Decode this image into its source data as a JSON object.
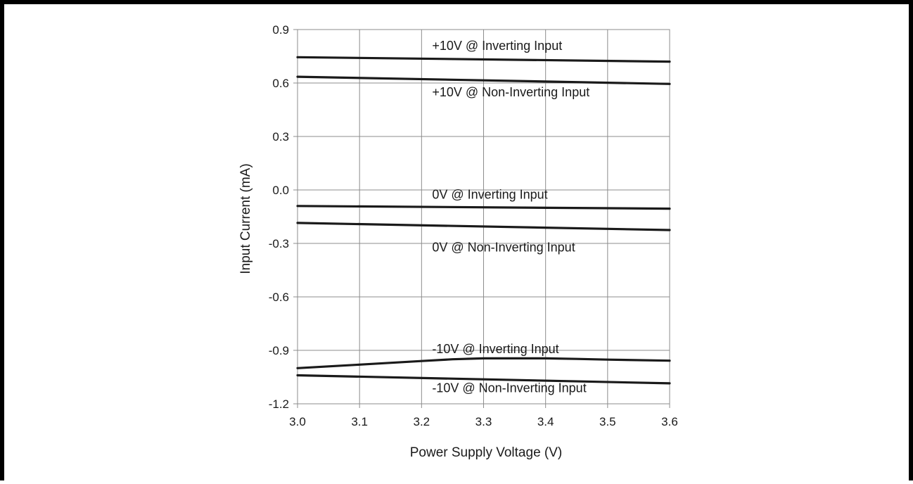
{
  "chart_data": {
    "type": "line",
    "xlabel": "Power Supply Voltage (V)",
    "ylabel": "Input Current (mA)",
    "xlim": [
      3.0,
      3.6
    ],
    "ylim": [
      -1.2,
      0.9
    ],
    "x_ticks": [
      "3.0",
      "3.1",
      "3.2",
      "3.3",
      "3.4",
      "3.5",
      "3.6"
    ],
    "y_ticks": [
      "0.9",
      "0.6",
      "0.3",
      "0.0",
      "-0.3",
      "-0.6",
      "-0.9",
      "-1.2"
    ],
    "grid": true,
    "legend": "none",
    "line_color": "#1a1a1a",
    "grid_color": "#8c8c8c",
    "series": [
      {
        "name": "+10V @ Inverting Input",
        "x": [
          3.0,
          3.6
        ],
        "values": [
          0.745,
          0.72
        ]
      },
      {
        "name": "+10V @ Non-Inverting Input",
        "x": [
          3.0,
          3.6
        ],
        "values": [
          0.635,
          0.595
        ]
      },
      {
        "name": "0V @ Inverting Input",
        "x": [
          3.0,
          3.6
        ],
        "values": [
          -0.09,
          -0.105
        ]
      },
      {
        "name": "0V @ Non-Inverting Input",
        "x": [
          3.0,
          3.6
        ],
        "values": [
          -0.185,
          -0.225
        ]
      },
      {
        "name": "-10V @ Inverting Input",
        "x": [
          3.0,
          3.1,
          3.2,
          3.25,
          3.3,
          3.4,
          3.45,
          3.5,
          3.6
        ],
        "values": [
          -1.0,
          -0.98,
          -0.96,
          -0.95,
          -0.945,
          -0.945,
          -0.948,
          -0.952,
          -0.958
        ]
      },
      {
        "name": "-10V @ Non-Inverting Input",
        "x": [
          3.0,
          3.6
        ],
        "values": [
          -1.04,
          -1.085
        ]
      }
    ],
    "annotations": [
      {
        "text": "+10V @ Inverting Input",
        "x": 3.217,
        "y": 0.785
      },
      {
        "text": "+10V @ Non-Inverting Input",
        "x": 3.217,
        "y": 0.525
      },
      {
        "text": "0V @ Inverting Input",
        "x": 3.217,
        "y": -0.05
      },
      {
        "text": "0V @ Non-Inverting Input",
        "x": 3.217,
        "y": -0.345
      },
      {
        "text": "-10V @ Inverting Input",
        "x": 3.217,
        "y": -0.915
      },
      {
        "text": "-10V @ Non-Inverting Input",
        "x": 3.217,
        "y": -1.135
      }
    ]
  }
}
